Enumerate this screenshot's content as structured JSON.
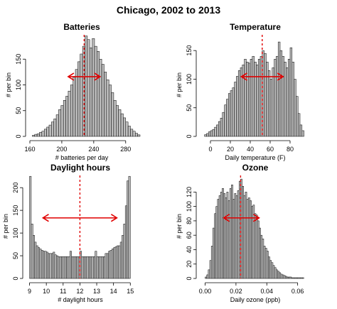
{
  "figure": {
    "title": "Chicago, 2002 to 2013",
    "colors": {
      "bar_fill": "#bdbdbd",
      "bar_stroke": "#000000",
      "mean_line": "#e00000",
      "arrow": "#e00000"
    }
  },
  "chart_data": [
    {
      "type": "bar",
      "title": "Batteries",
      "xlabel": "# batteries per day",
      "ylabel": "# per bin",
      "xlim": [
        160,
        290
      ],
      "ylim": [
        0,
        200
      ],
      "xticks": [
        160,
        200,
        240,
        280
      ],
      "yticks": [
        0,
        50,
        100,
        150
      ],
      "bin_start": 163,
      "bin_width": 3,
      "counts": [
        2,
        4,
        5,
        8,
        10,
        14,
        18,
        22,
        28,
        34,
        42,
        52,
        60,
        70,
        78,
        88,
        100,
        115,
        130,
        145,
        160,
        175,
        195,
        188,
        172,
        190,
        175,
        165,
        150,
        140,
        125,
        110,
        100,
        85,
        70,
        60,
        52,
        44,
        36,
        28,
        20,
        14,
        10,
        6,
        3
      ],
      "mean": 228,
      "arrow": [
        208,
        248
      ]
    },
    {
      "type": "bar",
      "title": "Temperature",
      "xlabel": "Daily temperature (F)",
      "ylabel": "# per bin",
      "xlim": [
        -10,
        100
      ],
      "ylim": [
        0,
        180
      ],
      "xticks": [
        0,
        20,
        40,
        60,
        80
      ],
      "yticks": [
        0,
        50,
        100,
        150
      ],
      "bin_start": -6,
      "bin_width": 2,
      "counts": [
        3,
        5,
        8,
        10,
        12,
        16,
        20,
        26,
        32,
        42,
        55,
        65,
        75,
        80,
        85,
        95,
        105,
        115,
        120,
        125,
        135,
        130,
        128,
        135,
        140,
        130,
        125,
        135,
        140,
        150,
        145,
        130,
        115,
        100,
        120,
        135,
        140,
        165,
        150,
        140,
        130,
        120,
        135,
        155,
        130,
        100,
        70,
        40,
        20,
        10
      ],
      "mean": 52,
      "arrow": [
        31,
        73
      ]
    },
    {
      "type": "bar",
      "title": "Daylight hours",
      "xlabel": "# daylight hours",
      "ylabel": "# per bin",
      "xlim": [
        8.85,
        15.2
      ],
      "ylim": [
        0,
        230
      ],
      "xticks": [
        9,
        10,
        11,
        12,
        13,
        14,
        15
      ],
      "xtick_labels": [
        "9",
        "10",
        "11",
        "12",
        "13",
        "14",
        "15"
      ],
      "yticks": [
        0,
        50,
        100,
        150,
        200
      ],
      "bin_start": 9,
      "bin_width": 0.1,
      "counts": [
        225,
        120,
        95,
        80,
        72,
        68,
        65,
        62,
        60,
        60,
        58,
        55,
        55,
        55,
        58,
        52,
        50,
        48,
        48,
        48,
        48,
        48,
        48,
        48,
        60,
        48,
        48,
        48,
        48,
        48,
        60,
        48,
        48,
        48,
        48,
        48,
        48,
        48,
        48,
        60,
        48,
        48,
        48,
        48,
        48,
        55,
        55,
        60,
        62,
        65,
        68,
        70,
        72,
        72,
        80,
        95,
        120,
        160,
        215,
        225
      ],
      "mean": 12.0,
      "arrow": [
        9.8,
        14.2
      ]
    },
    {
      "type": "bar",
      "title": "Ozone",
      "xlabel": "Daily ozone (ppb)",
      "ylabel": "# per bin",
      "xlim": [
        -0.003,
        0.068
      ],
      "ylim": [
        0,
        145
      ],
      "xticks": [
        0.0,
        0.02,
        0.04,
        0.06
      ],
      "xtick_labels": [
        "0.00",
        "0.02",
        "0.04",
        "0.06"
      ],
      "yticks": [
        0,
        20,
        40,
        60,
        80,
        100,
        120
      ],
      "bin_start": 0,
      "bin_width": 0.001,
      "counts": [
        2,
        5,
        12,
        25,
        45,
        70,
        90,
        100,
        110,
        115,
        120,
        125,
        118,
        112,
        120,
        108,
        125,
        130,
        110,
        118,
        115,
        122,
        135,
        138,
        128,
        115,
        120,
        110,
        112,
        108,
        100,
        102,
        90,
        88,
        80,
        70,
        60,
        55,
        45,
        42,
        38,
        30,
        25,
        22,
        18,
        15,
        12,
        10,
        8,
        6,
        5,
        4,
        3,
        2,
        2,
        2,
        1,
        1,
        1,
        1,
        1,
        1,
        1,
        1
      ],
      "mean": 0.023,
      "arrow": [
        0.012,
        0.035
      ]
    }
  ]
}
